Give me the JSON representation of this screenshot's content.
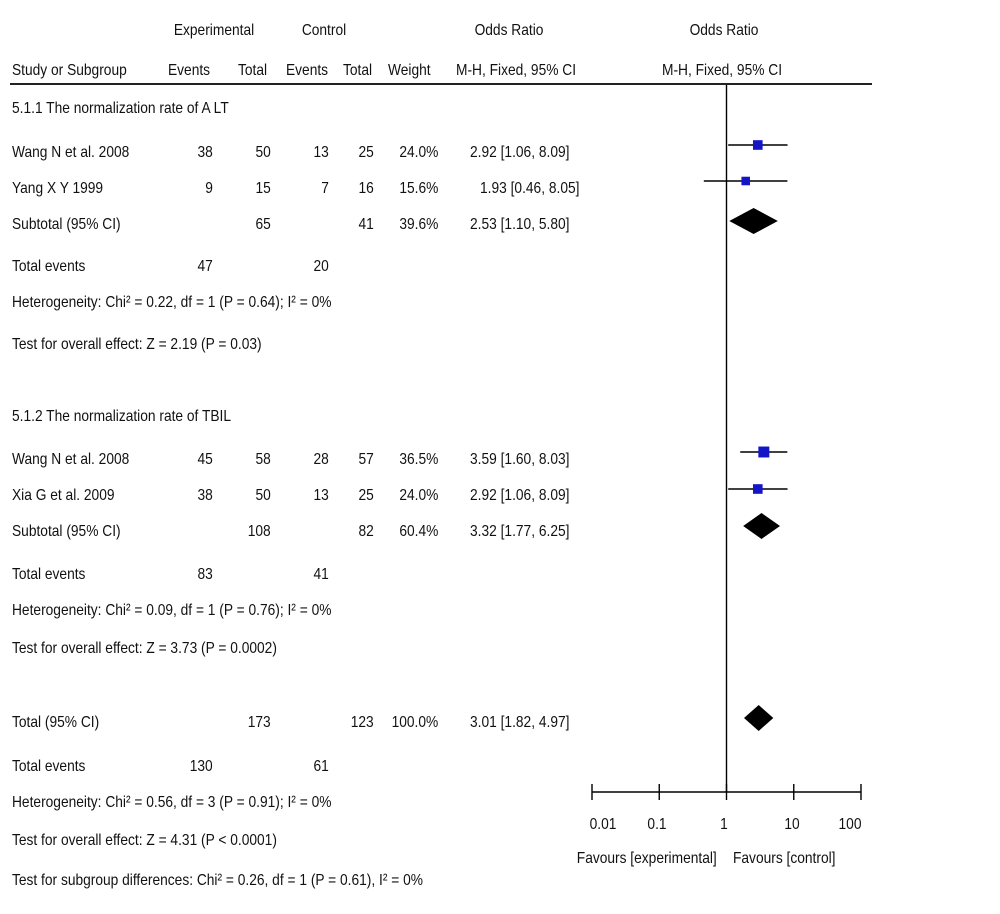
{
  "header": {
    "group1": "Experimental",
    "group2": "Control",
    "effect_left": "Odds Ratio",
    "effect_right": "Odds Ratio",
    "col_study": "Study or Subgroup",
    "col_events1": "Events",
    "col_total1": "Total",
    "col_events2": "Events",
    "col_total2": "Total",
    "col_weight": "Weight",
    "col_method_left": "M-H, Fixed, 95% CI",
    "col_method_right": "M-H, Fixed, 95% CI"
  },
  "subgroups": [
    {
      "title": "5.1.1 The normalization rate of A LT",
      "studies": [
        {
          "name": "Wang N et al. 2008",
          "events1": "38",
          "total1": "50",
          "events2": "13",
          "total2": "25",
          "weight": "24.0%",
          "ci": "2.92 [1.06, 8.09]"
        },
        {
          "name": "Yang X Y 1999",
          "events1": "9",
          "total1": "15",
          "events2": "7",
          "total2": "16",
          "weight": "15.6%",
          "ci": "1.93 [0.46, 8.05]"
        }
      ],
      "subtotal": {
        "label": "Subtotal (95% CI)",
        "total1": "65",
        "total2": "41",
        "weight": "39.6%",
        "ci": "2.53 [1.10, 5.80]"
      },
      "total_events": {
        "label": "Total events",
        "events1": "47",
        "events2": "20"
      },
      "heterogeneity": "Heterogeneity: Chi² = 0.22, df = 1 (P = 0.64); I² = 0%",
      "overall": "Test for overall effect: Z = 2.19 (P = 0.03)"
    },
    {
      "title": "5.1.2 The normalization rate of TBIL",
      "studies": [
        {
          "name": "Wang N et al. 2008",
          "events1": "45",
          "total1": "58",
          "events2": "28",
          "total2": "57",
          "weight": "36.5%",
          "ci": "3.59 [1.60, 8.03]"
        },
        {
          "name": "Xia G et al. 2009",
          "events1": "38",
          "total1": "50",
          "events2": "13",
          "total2": "25",
          "weight": "24.0%",
          "ci": "2.92 [1.06, 8.09]"
        }
      ],
      "subtotal": {
        "label": "Subtotal (95% CI)",
        "total1": "108",
        "total2": "82",
        "weight": "60.4%",
        "ci": "3.32 [1.77, 6.25]"
      },
      "total_events": {
        "label": "Total events",
        "events1": "83",
        "events2": "41"
      },
      "heterogeneity": "Heterogeneity: Chi² = 0.09, df = 1 (P = 0.76); I² = 0%",
      "overall": "Test for overall effect: Z = 3.73 (P = 0.0002)"
    }
  ],
  "total": {
    "label": "Total (95% CI)",
    "total1": "173",
    "total2": "123",
    "weight": "100.0%",
    "ci": "3.01 [1.82, 4.97]"
  },
  "total_events": {
    "label": "Total events",
    "events1": "130",
    "events2": "61"
  },
  "heterogeneity": "Heterogeneity: Chi² = 0.56, df = 3 (P = 0.91); I² = 0%",
  "overall": "Test for overall effect: Z = 4.31 (P < 0.0001)",
  "subgroup_diff": "Test for subgroup differences: Chi² = 0.26, df = 1 (P = 0.61), I² = 0%",
  "axis": {
    "ticks": [
      "0.01",
      "0.1",
      "1",
      "10",
      "100"
    ],
    "favours_left": "Favours [experimental]",
    "favours_right": "Favours [control]"
  },
  "chart_data": {
    "type": "scatter",
    "scale": "log",
    "xlim": [
      0.01,
      100
    ],
    "ticks": [
      0.01,
      0.1,
      1,
      10,
      100
    ],
    "null_line": 1,
    "studies": [
      {
        "name": "Wang N et al. 2008",
        "or": 2.92,
        "lo": 1.06,
        "hi": 8.09,
        "weight": 24.0
      },
      {
        "name": "Yang X Y 1999",
        "or": 1.93,
        "lo": 0.46,
        "hi": 8.05,
        "weight": 15.6
      },
      {
        "name": "Wang N et al. 2008",
        "or": 3.59,
        "lo": 1.6,
        "hi": 8.03,
        "weight": 36.5
      },
      {
        "name": "Xia G et al. 2009",
        "or": 2.92,
        "lo": 1.06,
        "hi": 8.09,
        "weight": 24.0
      }
    ],
    "diamonds": [
      {
        "name": "Subtotal (95% CI)",
        "or": 2.53,
        "lo": 1.1,
        "hi": 5.8
      },
      {
        "name": "Subtotal (95% CI)",
        "or": 3.32,
        "lo": 1.77,
        "hi": 6.25
      },
      {
        "name": "Total (95% CI)",
        "or": 3.01,
        "lo": 1.82,
        "hi": 4.97
      }
    ],
    "colors": {
      "square": "#1515c8",
      "line": "#000000",
      "diamond": "#000000"
    }
  }
}
